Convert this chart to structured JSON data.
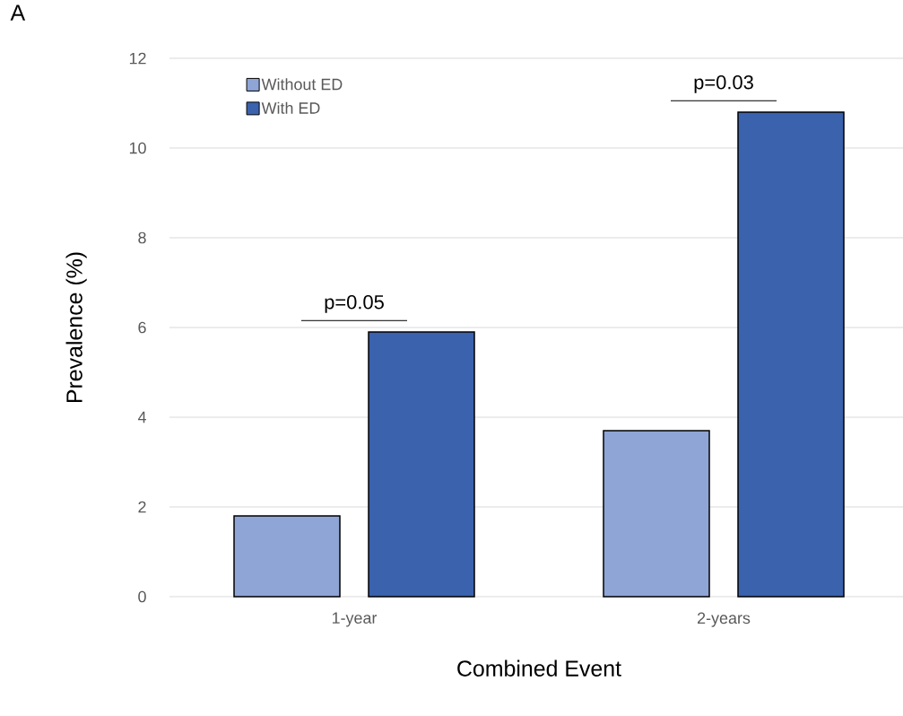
{
  "chart_data": {
    "type": "bar",
    "xlabel": "Combined Event",
    "ylabel": "Prevalence (%)",
    "categories": [
      "1-year",
      "2-years"
    ],
    "series": [
      {
        "name": "Without ED",
        "color": "#8fa5d6",
        "values": [
          1.8,
          3.7
        ]
      },
      {
        "name": "With ED",
        "color": "#3a62ad",
        "values": [
          5.9,
          10.8
        ]
      }
    ],
    "ylim": [
      0,
      12
    ],
    "yticks": [
      0,
      2,
      4,
      6,
      8,
      10,
      12
    ],
    "grid": "y",
    "legend": "top left",
    "annotations": [
      "A",
      "p=0.05",
      "p=0.03"
    ]
  }
}
